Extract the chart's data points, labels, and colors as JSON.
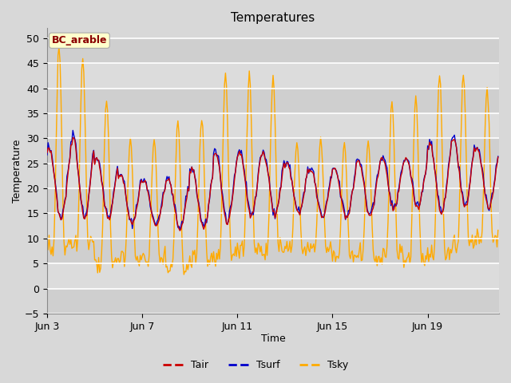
{
  "title": "Temperatures",
  "xlabel": "Time",
  "ylabel": "Temperature",
  "ylim": [
    -5,
    52
  ],
  "yticks": [
    -5,
    0,
    5,
    10,
    15,
    20,
    25,
    30,
    35,
    40,
    45,
    50
  ],
  "line_colors": {
    "Tair": "#cc0000",
    "Tsurf": "#0000cc",
    "Tsky": "#ffaa00"
  },
  "line_widths": {
    "Tair": 1.0,
    "Tsurf": 1.0,
    "Tsky": 1.0
  },
  "legend_label": "BC_arable",
  "legend_box_facecolor": "#ffffcc",
  "legend_box_edgecolor": "#aaaaaa",
  "legend_text_color": "#8b0000",
  "fig_facecolor": "#d8d8d8",
  "ax_facecolor": "#d8d8d8",
  "xtick_labels": [
    "Jun 3",
    "Jun 7",
    "Jun 11",
    "Jun 15",
    "Jun 19"
  ],
  "xtick_positions": [
    0,
    4,
    8,
    12,
    16
  ],
  "n_days": 19,
  "seed": 17
}
